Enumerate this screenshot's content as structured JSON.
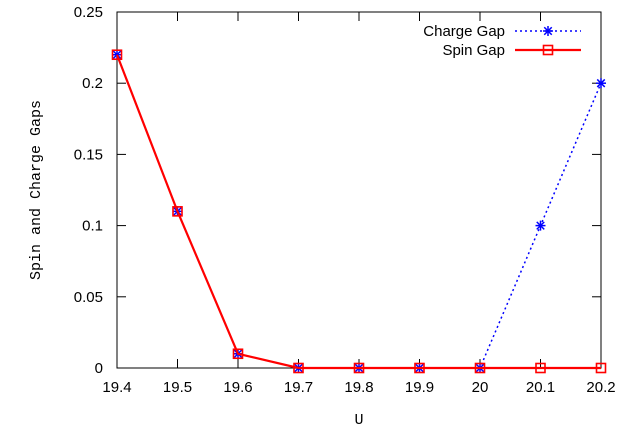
{
  "chart_data": {
    "type": "line",
    "title": "",
    "xlabel": "U",
    "ylabel": "Spin and Charge Gaps",
    "xlim": [
      19.4,
      20.2
    ],
    "ylim": [
      0,
      0.25
    ],
    "x_ticks": [
      "19.4",
      "19.5",
      "19.6",
      "19.7",
      "19.8",
      "19.9",
      "20",
      "20.1",
      "20.2"
    ],
    "y_ticks": [
      "0",
      "0.05",
      "0.1",
      "0.15",
      "0.2",
      "0.25"
    ],
    "grid": false,
    "legend_position": "top-right",
    "series": [
      {
        "name": "Charge Gap",
        "color": "#0000ff",
        "line_style": "dotted",
        "marker": "asterisk",
        "x": [
          19.4,
          19.5,
          19.6,
          19.7,
          19.8,
          19.9,
          20.0,
          20.1,
          20.2
        ],
        "y": [
          0.22,
          0.11,
          0.01,
          0.0,
          0.0,
          0.0,
          0.0,
          0.1,
          0.2
        ]
      },
      {
        "name": "Spin Gap",
        "color": "#ff0000",
        "line_style": "solid",
        "marker": "open-square",
        "x": [
          19.4,
          19.5,
          19.6,
          19.7,
          19.8,
          19.9,
          20.0,
          20.1,
          20.2
        ],
        "y": [
          0.22,
          0.11,
          0.01,
          0.0,
          0.0,
          0.0,
          0.0,
          0.0,
          0.0
        ]
      }
    ]
  }
}
